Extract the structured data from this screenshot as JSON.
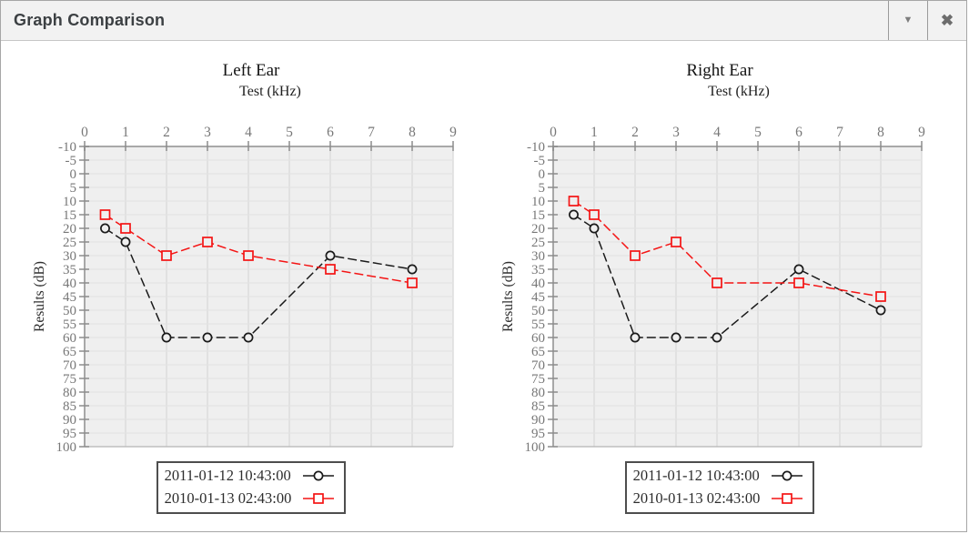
{
  "window": {
    "title": "Graph Comparison",
    "buttons": {
      "collapse_glyph": "▼",
      "close_glyph": "✖"
    }
  },
  "colors": {
    "series_black": "#1a1a1a",
    "series_red": "#f41414",
    "plot_bg": "#efefef",
    "grid_vertical": "#d9d9d9",
    "grid_horizontal": "#e3e3e3",
    "axis": "#a8a8a8",
    "bottom_line": "#b5b5b5",
    "tick": "#8c8c8c",
    "tick_label": "#777777",
    "axis_title": "#2f2f2f"
  },
  "chart_data": [
    {
      "type": "line",
      "title": "Left Ear",
      "subtitle": "Test (kHz)",
      "xlabel": "Test (kHz)",
      "ylabel": "Results (dB)",
      "xlim": [
        0,
        9
      ],
      "ylim": [
        -10,
        100
      ],
      "y_inverted": true,
      "grid": true,
      "legend_position": "bottom",
      "x_ticks": [
        0,
        1,
        2,
        3,
        4,
        5,
        6,
        7,
        8,
        9
      ],
      "y_ticks": [
        -10,
        -5,
        0,
        5,
        10,
        15,
        20,
        25,
        30,
        35,
        40,
        45,
        50,
        55,
        60,
        65,
        70,
        75,
        80,
        85,
        90,
        95,
        100
      ],
      "series": [
        {
          "name": "2011-01-12 10:43:00",
          "color": "#1a1a1a",
          "marker": "circle",
          "x": [
            0.5,
            1,
            2,
            3,
            4,
            6,
            8
          ],
          "y": [
            20,
            25,
            60,
            60,
            60,
            30,
            35
          ]
        },
        {
          "name": "2010-01-13 02:43:00",
          "color": "#f41414",
          "marker": "square",
          "x": [
            0.5,
            1,
            2,
            3,
            4,
            6,
            8
          ],
          "y": [
            15,
            20,
            30,
            25,
            30,
            35,
            40
          ]
        }
      ]
    },
    {
      "type": "line",
      "title": "Right Ear",
      "subtitle": "Test (kHz)",
      "xlabel": "Test (kHz)",
      "ylabel": "Results (dB)",
      "xlim": [
        0,
        9
      ],
      "ylim": [
        -10,
        100
      ],
      "y_inverted": true,
      "grid": true,
      "legend_position": "bottom",
      "x_ticks": [
        0,
        1,
        2,
        3,
        4,
        5,
        6,
        7,
        8,
        9
      ],
      "y_ticks": [
        -10,
        -5,
        0,
        5,
        10,
        15,
        20,
        25,
        30,
        35,
        40,
        45,
        50,
        55,
        60,
        65,
        70,
        75,
        80,
        85,
        90,
        95,
        100
      ],
      "series": [
        {
          "name": "2011-01-12 10:43:00",
          "color": "#1a1a1a",
          "marker": "circle",
          "x": [
            0.5,
            1,
            2,
            3,
            4,
            6,
            8
          ],
          "y": [
            15,
            20,
            60,
            60,
            60,
            35,
            50
          ]
        },
        {
          "name": "2010-01-13 02:43:00",
          "color": "#f41414",
          "marker": "square",
          "x": [
            0.5,
            1,
            2,
            3,
            4,
            6,
            8
          ],
          "y": [
            10,
            15,
            30,
            25,
            40,
            40,
            45
          ]
        }
      ]
    }
  ]
}
